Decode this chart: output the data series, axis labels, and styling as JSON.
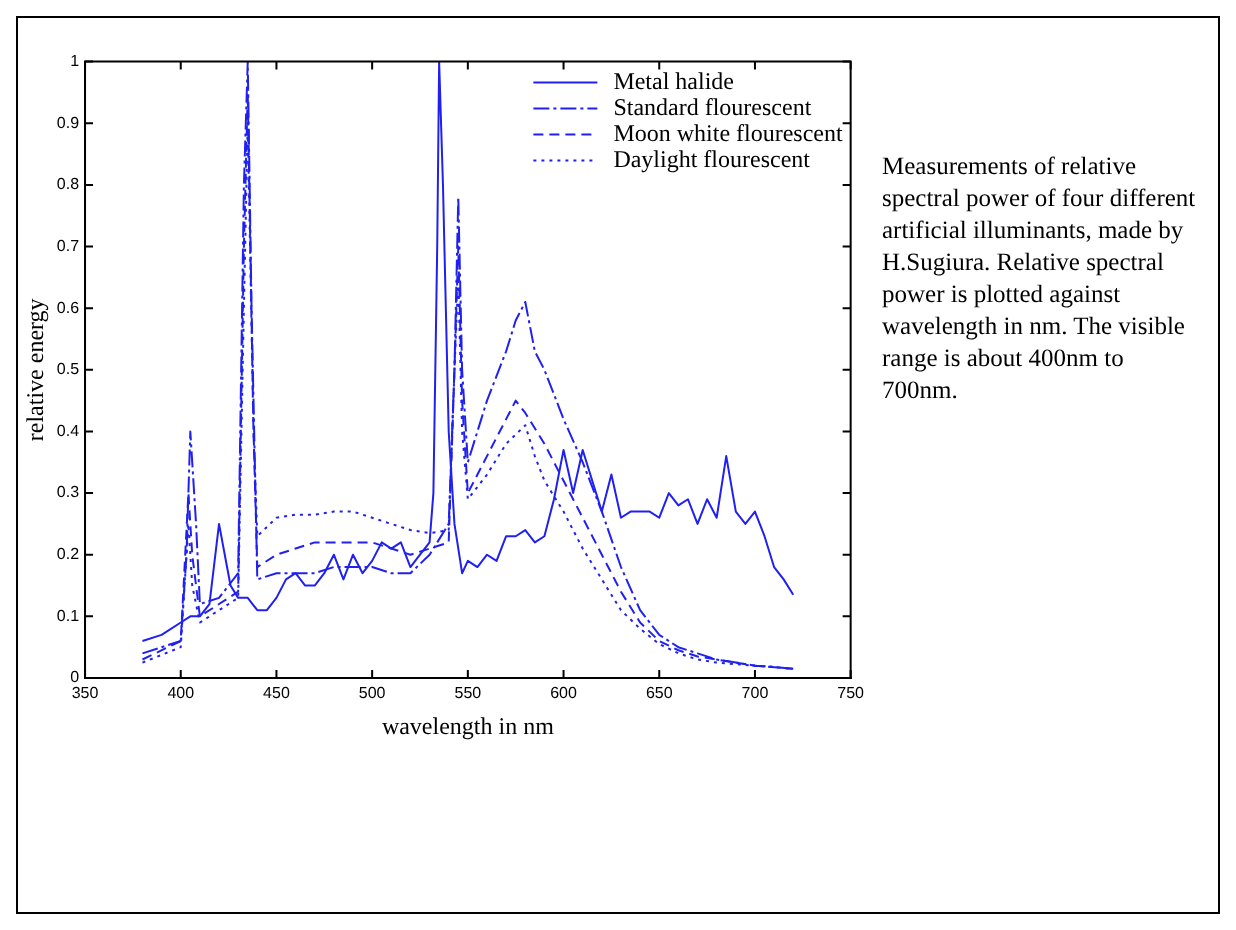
{
  "chart_data": {
    "type": "line",
    "xlabel": "wavelength in nm",
    "ylabel": "relative energy",
    "xlim": [
      350,
      750
    ],
    "xticks": [
      350,
      400,
      450,
      500,
      550,
      600,
      650,
      700,
      750
    ],
    "ylim": [
      0,
      1
    ],
    "yticks": [
      0,
      0.1,
      0.2,
      0.3,
      0.4,
      0.5,
      0.6,
      0.7,
      0.8,
      0.9,
      1
    ],
    "grid": false,
    "legend": "top right",
    "marker": "none",
    "annotations": [
      "Measurements of relative spectral power of four different artificial illuminants, made by H.Sugiura.  Relative spectral power is plotted against wavelength in nm.  The visible range is about 400nm to 700nm."
    ],
    "series": [
      {
        "name": "Metal halide",
        "color": "#2020f0",
        "line_style": "solid",
        "x": [
          380,
          390,
          400,
          405,
          410,
          415,
          420,
          423,
          426,
          430,
          435,
          440,
          445,
          450,
          455,
          460,
          465,
          470,
          475,
          480,
          485,
          490,
          495,
          500,
          505,
          510,
          515,
          520,
          525,
          530,
          532,
          534,
          535,
          537,
          540,
          543,
          547,
          550,
          555,
          560,
          565,
          570,
          575,
          580,
          585,
          590,
          595,
          600,
          605,
          610,
          615,
          620,
          625,
          630,
          635,
          640,
          645,
          650,
          655,
          660,
          665,
          670,
          675,
          680,
          685,
          690,
          695,
          700,
          705,
          710,
          715,
          720
        ],
        "values": [
          0.06,
          0.07,
          0.09,
          0.1,
          0.1,
          0.12,
          0.25,
          0.2,
          0.15,
          0.13,
          0.13,
          0.11,
          0.11,
          0.13,
          0.16,
          0.17,
          0.15,
          0.15,
          0.17,
          0.2,
          0.16,
          0.2,
          0.17,
          0.19,
          0.22,
          0.21,
          0.22,
          0.18,
          0.2,
          0.22,
          0.3,
          0.7,
          1,
          0.8,
          0.4,
          0.25,
          0.17,
          0.19,
          0.18,
          0.2,
          0.19,
          0.23,
          0.23,
          0.24,
          0.22,
          0.23,
          0.29,
          0.37,
          0.3,
          0.37,
          0.32,
          0.27,
          0.33,
          0.26,
          0.27,
          0.27,
          0.27,
          0.26,
          0.3,
          0.28,
          0.29,
          0.25,
          0.29,
          0.26,
          0.36,
          0.27,
          0.25,
          0.27,
          0.23,
          0.18,
          0.16,
          0.135
        ]
      },
      {
        "name": "Standard flourescent",
        "color": "#2020f0",
        "line_style": "dashdot",
        "x": [
          380,
          390,
          400,
          403,
          405,
          408,
          410,
          420,
          430,
          433,
          435,
          437,
          440,
          450,
          460,
          470,
          480,
          490,
          500,
          510,
          520,
          530,
          540,
          543,
          545,
          547,
          550,
          560,
          570,
          575,
          580,
          585,
          590,
          600,
          610,
          620,
          630,
          640,
          650,
          660,
          670,
          680,
          690,
          700,
          710,
          720
        ],
        "values": [
          0.04,
          0.05,
          0.06,
          0.2,
          0.4,
          0.25,
          0.12,
          0.13,
          0.17,
          0.8,
          1,
          0.6,
          0.16,
          0.17,
          0.17,
          0.17,
          0.18,
          0.18,
          0.18,
          0.17,
          0.17,
          0.2,
          0.25,
          0.5,
          0.78,
          0.5,
          0.35,
          0.45,
          0.53,
          0.58,
          0.61,
          0.53,
          0.5,
          0.42,
          0.35,
          0.27,
          0.18,
          0.11,
          0.07,
          0.05,
          0.04,
          0.03,
          0.025,
          0.02,
          0.018,
          0.015
        ]
      },
      {
        "name": "Moon white flourescent",
        "color": "#2020f0",
        "line_style": "dashed",
        "x": [
          380,
          400,
          404,
          406,
          410,
          420,
          430,
          433,
          435,
          438,
          440,
          450,
          460,
          470,
          480,
          490,
          500,
          510,
          520,
          530,
          540,
          543,
          545,
          547,
          550,
          560,
          570,
          575,
          580,
          590,
          600,
          610,
          620,
          630,
          640,
          650,
          660,
          670,
          680,
          700,
          720
        ],
        "values": [
          0.03,
          0.06,
          0.3,
          0.2,
          0.1,
          0.12,
          0.14,
          0.7,
          0.95,
          0.4,
          0.18,
          0.2,
          0.21,
          0.22,
          0.22,
          0.22,
          0.22,
          0.21,
          0.2,
          0.21,
          0.22,
          0.5,
          0.7,
          0.45,
          0.3,
          0.36,
          0.42,
          0.45,
          0.43,
          0.38,
          0.32,
          0.26,
          0.2,
          0.14,
          0.09,
          0.06,
          0.045,
          0.035,
          0.03,
          0.02,
          0.015
        ]
      },
      {
        "name": "Daylight flourescent",
        "color": "#2020f0",
        "line_style": "dotted",
        "x": [
          380,
          400,
          404,
          406,
          410,
          420,
          430,
          433,
          435,
          438,
          440,
          450,
          460,
          470,
          480,
          490,
          500,
          510,
          520,
          530,
          540,
          543,
          545,
          547,
          550,
          560,
          570,
          580,
          585,
          590,
          600,
          610,
          620,
          630,
          640,
          650,
          660,
          670,
          680,
          700,
          720
        ],
        "values": [
          0.025,
          0.05,
          0.25,
          0.15,
          0.09,
          0.11,
          0.13,
          0.6,
          0.9,
          0.4,
          0.23,
          0.26,
          0.265,
          0.265,
          0.27,
          0.27,
          0.26,
          0.25,
          0.24,
          0.235,
          0.24,
          0.5,
          0.65,
          0.4,
          0.29,
          0.33,
          0.38,
          0.41,
          0.36,
          0.32,
          0.27,
          0.21,
          0.16,
          0.11,
          0.08,
          0.055,
          0.04,
          0.03,
          0.025,
          0.02,
          0.015
        ]
      }
    ]
  }
}
